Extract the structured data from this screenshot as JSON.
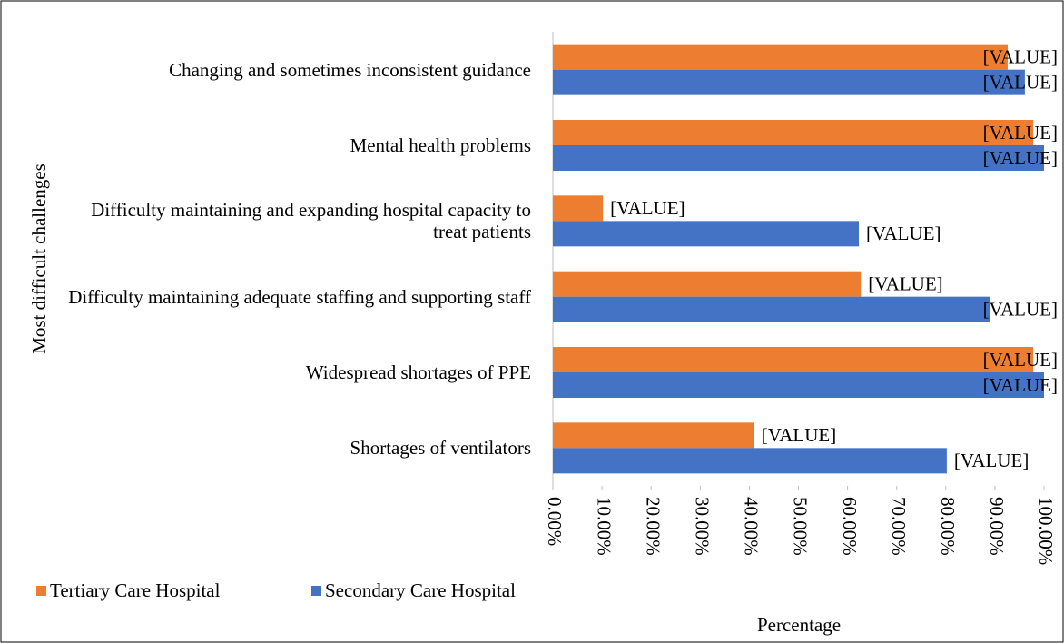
{
  "chart_data": {
    "type": "bar",
    "orientation": "horizontal",
    "y_label": "Most difficult challenges",
    "x_label": "Percentage",
    "categories": [
      "Changing and sometimes inconsistent guidance",
      "Mental health problems",
      "Difficulty maintaining and expanding hospital capacity to treat patients",
      "Difficulty maintaining adequate staffing and supporting staff",
      "Widespread shortages of PPE",
      "Shortages of ventilators"
    ],
    "series": [
      {
        "name": "Tertiary Care Hospital",
        "color": "#ed7d31",
        "values": [
          92.6,
          97.8,
          10.2,
          62.7,
          97.8,
          41.0
        ],
        "value_labels": [
          "[VALUE]",
          "[VALUE]",
          "[VALUE]",
          "[VALUE]",
          "[VALUE]",
          "[VALUE]"
        ]
      },
      {
        "name": "Secondary Care Hospital",
        "color": "#4472c4",
        "values": [
          96.1,
          100,
          62.3,
          89.1,
          100,
          80.2
        ],
        "value_labels": [
          "[VALUE]",
          "[VALUE]",
          "[VALUE]",
          "[VALUE]",
          "[VALUE]",
          "[VALUE]"
        ]
      }
    ],
    "xlim": [
      0,
      100
    ],
    "xticks": [
      {
        "value": 0,
        "label": "0.00%"
      },
      {
        "value": 10,
        "label": "10.00%"
      },
      {
        "value": 20,
        "label": "20.00%"
      },
      {
        "value": 30,
        "label": "30.00%"
      },
      {
        "value": 40,
        "label": "40.00%"
      },
      {
        "value": 50,
        "label": "50.00%"
      },
      {
        "value": 60,
        "label": "60.00%"
      },
      {
        "value": 70,
        "label": "70.00%"
      },
      {
        "value": 80,
        "label": "80.00%"
      },
      {
        "value": 90,
        "label": "90.00%"
      },
      {
        "value": 100,
        "label": "100.00%"
      }
    ],
    "legend": "bottom-left",
    "grid": false
  }
}
